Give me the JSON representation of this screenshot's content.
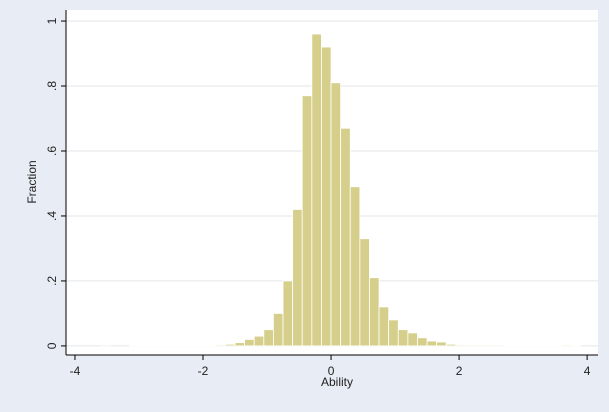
{
  "chart_data": {
    "type": "histogram",
    "x_label": "Ability",
    "y_label": "Fraction",
    "bins": [
      -3.6,
      -3.45,
      -3.3,
      -3.15,
      -3.0,
      -2.85,
      -2.7,
      -2.55,
      -2.4,
      -2.25,
      -2.1,
      -1.95,
      -1.8,
      -1.65,
      -1.5,
      -1.35,
      -1.2,
      -1.05,
      -0.9,
      -0.75,
      -0.6,
      -0.45,
      -0.3,
      -0.15,
      0,
      0.15,
      0.3,
      0.45,
      0.6,
      0.75,
      0.9,
      1.05,
      1.2,
      1.35,
      1.5,
      1.65,
      1.8,
      1.95,
      2.1,
      2.25,
      2.4,
      2.55,
      2.7,
      2.85,
      3.0,
      3.15,
      3.3,
      3.45,
      3.6,
      3.75,
      3.9
    ],
    "values": [
      0.003,
      0,
      0,
      0.002,
      0.002,
      0.002,
      0.002,
      0.002,
      0.002,
      0.002,
      0.002,
      0.002,
      0.003,
      0.005,
      0.01,
      0.02,
      0.03,
      0.05,
      0.1,
      0.2,
      0.42,
      0.77,
      0.96,
      0.92,
      0.81,
      0.67,
      0.49,
      0.33,
      0.21,
      0.12,
      0.08,
      0.05,
      0.04,
      0.025,
      0.015,
      0.012,
      0.005,
      0.003,
      0.003,
      0.003,
      0.003,
      0.003,
      0.002,
      0.002,
      0.002,
      0.002,
      0.002,
      0.002,
      0.003,
      0.002
    ],
    "color": "#d6cf8c",
    "xlim": [
      -4.14,
      4.17
    ],
    "xticks": [
      -4,
      -2,
      0,
      2,
      4
    ],
    "ylim": [
      -0.028,
      1.034
    ],
    "yticks": [
      0,
      {
        "value": 0.2,
        "label": ".2"
      },
      {
        "value": 0.4,
        "label": ".4"
      },
      {
        "value": 0.6,
        "label": ".6"
      },
      {
        "value": 0.8,
        "label": ".8"
      },
      1
    ],
    "grid": true
  }
}
